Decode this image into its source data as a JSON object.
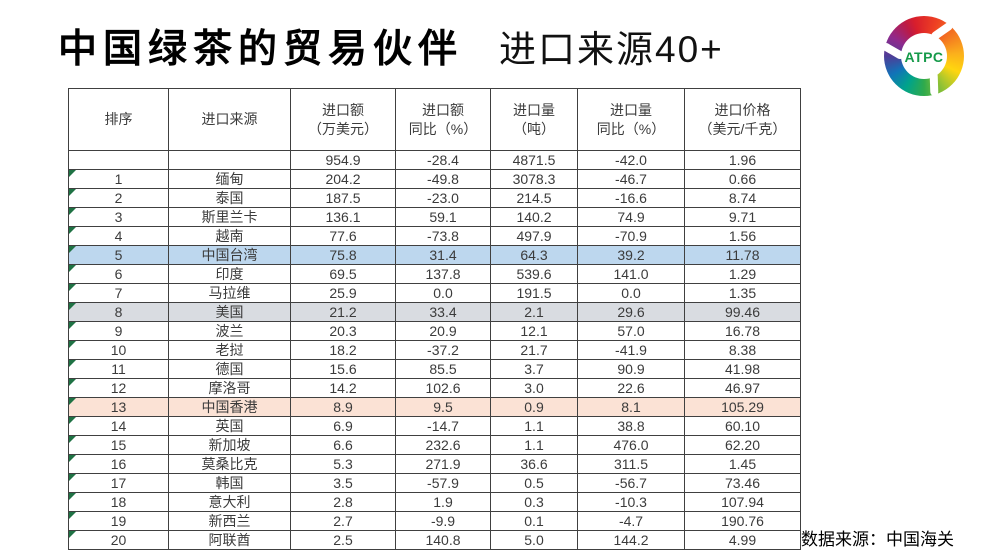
{
  "title": {
    "main": "中国绿茶的贸易伙伴",
    "sub": "进口来源40+"
  },
  "logo": {
    "text": "ATPC"
  },
  "footer": {
    "source": "数据来源：中国海关"
  },
  "colors": {
    "highlight_blue": "#BDD7EE",
    "highlight_gray": "#D9DCE1",
    "highlight_peach": "#FBE2D5",
    "triangle_green": "#1F7244"
  },
  "chart_data": {
    "type": "table",
    "columns": [
      {
        "line1": "排序",
        "line2": ""
      },
      {
        "line1": "进口来源",
        "line2": ""
      },
      {
        "line1": "进口额",
        "line2": "（万美元）"
      },
      {
        "line1": "进口额",
        "line2": "同比（%）"
      },
      {
        "line1": "进口量",
        "line2": "（吨）"
      },
      {
        "line1": "进口量",
        "line2": "同比（%）"
      },
      {
        "line1": "进口价格",
        "line2": "（美元/千克）"
      }
    ],
    "rows": [
      {
        "rank": "",
        "source": "",
        "values": [
          "954.9",
          "-28.4",
          "4871.5",
          "-42.0",
          "1.96"
        ],
        "highlight": null,
        "triangle": false
      },
      {
        "rank": "1",
        "source": "缅甸",
        "values": [
          "204.2",
          "-49.8",
          "3078.3",
          "-46.7",
          "0.66"
        ],
        "highlight": null,
        "triangle": true
      },
      {
        "rank": "2",
        "source": "泰国",
        "values": [
          "187.5",
          "-23.0",
          "214.5",
          "-16.6",
          "8.74"
        ],
        "highlight": null,
        "triangle": true
      },
      {
        "rank": "3",
        "source": "斯里兰卡",
        "values": [
          "136.1",
          "59.1",
          "140.2",
          "74.9",
          "9.71"
        ],
        "highlight": null,
        "triangle": true
      },
      {
        "rank": "4",
        "source": "越南",
        "values": [
          "77.6",
          "-73.8",
          "497.9",
          "-70.9",
          "1.56"
        ],
        "highlight": null,
        "triangle": true
      },
      {
        "rank": "5",
        "source": "中国台湾",
        "values": [
          "75.8",
          "31.4",
          "64.3",
          "39.2",
          "11.78"
        ],
        "highlight": "blue",
        "triangle": true
      },
      {
        "rank": "6",
        "source": "印度",
        "values": [
          "69.5",
          "137.8",
          "539.6",
          "141.0",
          "1.29"
        ],
        "highlight": null,
        "triangle": true
      },
      {
        "rank": "7",
        "source": "马拉维",
        "values": [
          "25.9",
          "0.0",
          "191.5",
          "0.0",
          "1.35"
        ],
        "highlight": null,
        "triangle": true
      },
      {
        "rank": "8",
        "source": "美国",
        "values": [
          "21.2",
          "33.4",
          "2.1",
          "29.6",
          "99.46"
        ],
        "highlight": "gray",
        "triangle": true
      },
      {
        "rank": "9",
        "source": "波兰",
        "values": [
          "20.3",
          "20.9",
          "12.1",
          "57.0",
          "16.78"
        ],
        "highlight": null,
        "triangle": true
      },
      {
        "rank": "10",
        "source": "老挝",
        "values": [
          "18.2",
          "-37.2",
          "21.7",
          "-41.9",
          "8.38"
        ],
        "highlight": null,
        "triangle": true
      },
      {
        "rank": "11",
        "source": "德国",
        "values": [
          "15.6",
          "85.5",
          "3.7",
          "90.9",
          "41.98"
        ],
        "highlight": null,
        "triangle": true
      },
      {
        "rank": "12",
        "source": "摩洛哥",
        "values": [
          "14.2",
          "102.6",
          "3.0",
          "22.6",
          "46.97"
        ],
        "highlight": null,
        "triangle": true
      },
      {
        "rank": "13",
        "source": "中国香港",
        "values": [
          "8.9",
          "9.5",
          "0.9",
          "8.1",
          "105.29"
        ],
        "highlight": "peach",
        "triangle": true
      },
      {
        "rank": "14",
        "source": "英国",
        "values": [
          "6.9",
          "-14.7",
          "1.1",
          "38.8",
          "60.10"
        ],
        "highlight": null,
        "triangle": true
      },
      {
        "rank": "15",
        "source": "新加坡",
        "values": [
          "6.6",
          "232.6",
          "1.1",
          "476.0",
          "62.20"
        ],
        "highlight": null,
        "triangle": true
      },
      {
        "rank": "16",
        "source": "莫桑比克",
        "values": [
          "5.3",
          "271.9",
          "36.6",
          "311.5",
          "1.45"
        ],
        "highlight": null,
        "triangle": true
      },
      {
        "rank": "17",
        "source": "韩国",
        "values": [
          "3.5",
          "-57.9",
          "0.5",
          "-56.7",
          "73.46"
        ],
        "highlight": null,
        "triangle": true
      },
      {
        "rank": "18",
        "source": "意大利",
        "values": [
          "2.8",
          "1.9",
          "0.3",
          "-10.3",
          "107.94"
        ],
        "highlight": null,
        "triangle": true
      },
      {
        "rank": "19",
        "source": "新西兰",
        "values": [
          "2.7",
          "-9.9",
          "0.1",
          "-4.7",
          "190.76"
        ],
        "highlight": null,
        "triangle": true
      },
      {
        "rank": "20",
        "source": "阿联酋",
        "values": [
          "2.5",
          "140.8",
          "5.0",
          "144.2",
          "4.99"
        ],
        "highlight": null,
        "triangle": true
      }
    ]
  }
}
